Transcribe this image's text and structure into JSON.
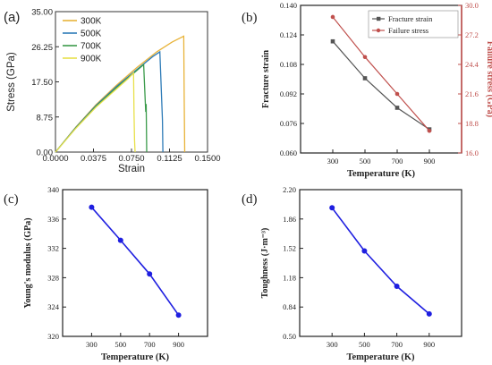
{
  "chart_data": [
    {
      "panel": "(a)",
      "type": "line",
      "xlabel": "Strain",
      "ylabel": "Stress (GPa)",
      "xlim": [
        0,
        0.15
      ],
      "ylim": [
        0,
        35
      ],
      "xticks": [
        "0.0000",
        "0.0375",
        "0.0750",
        "0.1125",
        "0.1500"
      ],
      "yticks": [
        "0.00",
        "8.75",
        "17.50",
        "26.25",
        "35.00"
      ],
      "legend_position": "top-left",
      "series": [
        {
          "name": "300K",
          "color": "#e8b339",
          "points": [
            [
              0,
              0
            ],
            [
              0.02,
              6.2
            ],
            [
              0.04,
              11.8
            ],
            [
              0.06,
              16.6
            ],
            [
              0.08,
              21.0
            ],
            [
              0.1,
              25.0
            ],
            [
              0.115,
              27.4
            ],
            [
              0.1265,
              28.9
            ],
            [
              0.127,
              14.0
            ],
            [
              0.1275,
              0
            ]
          ]
        },
        {
          "name": "500K",
          "color": "#2e7bb7",
          "points": [
            [
              0,
              0
            ],
            [
              0.02,
              6.1
            ],
            [
              0.04,
              11.6
            ],
            [
              0.06,
              16.3
            ],
            [
              0.08,
              20.5
            ],
            [
              0.096,
              23.8
            ],
            [
              0.103,
              25.0
            ],
            [
              0.1045,
              15.0
            ],
            [
              0.1055,
              8.0
            ],
            [
              0.106,
              0
            ]
          ]
        },
        {
          "name": "700K",
          "color": "#3a9a4a",
          "points": [
            [
              0,
              0
            ],
            [
              0.02,
              6.0
            ],
            [
              0.04,
              11.4
            ],
            [
              0.06,
              16.0
            ],
            [
              0.075,
              19.2
            ],
            [
              0.087,
              21.8
            ],
            [
              0.0885,
              13.0
            ],
            [
              0.089,
              10.0
            ],
            [
              0.0895,
              12.0
            ],
            [
              0.09,
              0
            ]
          ]
        },
        {
          "name": "900K",
          "color": "#e8e04a",
          "points": [
            [
              0,
              0
            ],
            [
              0.02,
              5.9
            ],
            [
              0.04,
              11.2
            ],
            [
              0.06,
              15.7
            ],
            [
              0.072,
              18.4
            ],
            [
              0.077,
              19.7
            ],
            [
              0.0775,
              10.0
            ],
            [
              0.078,
              3.0
            ],
            [
              0.0785,
              0
            ]
          ]
        }
      ]
    },
    {
      "panel": "(b)",
      "type": "line",
      "xlabel": "Temperature (K)",
      "ylabel": "Fracture strain",
      "ylabel_right": "Failure stress (GPa)",
      "x": [
        300,
        500,
        700,
        900
      ],
      "xlim": [
        100,
        1100
      ],
      "ylim": [
        0.06,
        0.14
      ],
      "ylim_right": [
        16.0,
        30.0
      ],
      "yticks": [
        "0.060",
        "0.076",
        "0.092",
        "0.108",
        "0.124",
        "0.140"
      ],
      "yticks_right": [
        "16.0",
        "18.8",
        "21.6",
        "24.4",
        "27.2",
        "30.0"
      ],
      "legend_position": "top-right",
      "series": [
        {
          "name": "Fracture strain",
          "axis": "left",
          "color": "#555555",
          "values": [
            0.1205,
            0.1005,
            0.0845,
            0.0728
          ]
        },
        {
          "name": "Failure stress",
          "axis": "right",
          "color": "#c0504d",
          "values": [
            28.9,
            25.1,
            21.6,
            18.1
          ]
        }
      ]
    },
    {
      "panel": "(c)",
      "type": "line",
      "xlabel": "Temperature (K)",
      "ylabel": "Young's modulus (GPa)",
      "x": [
        300,
        500,
        700,
        900
      ],
      "xlim": [
        100,
        1100
      ],
      "ylim": [
        320,
        340
      ],
      "yticks": [
        "320",
        "324",
        "328",
        "332",
        "336",
        "340"
      ],
      "series": [
        {
          "color": "#1f1fe0",
          "values": [
            337.6,
            333.1,
            328.5,
            322.9
          ]
        }
      ]
    },
    {
      "panel": "(d)",
      "type": "line",
      "xlabel": "Temperature (K)",
      "ylabel": "Toughness (J·m⁻³)",
      "x": [
        300,
        500,
        700,
        900
      ],
      "xlim": [
        100,
        1100
      ],
      "ylim": [
        0.5,
        2.2
      ],
      "yticks": [
        "0.50",
        "0.84",
        "1.18",
        "1.52",
        "1.86",
        "2.20"
      ],
      "series": [
        {
          "color": "#1f1fe0",
          "values": [
            1.99,
            1.49,
            1.08,
            0.76
          ]
        }
      ]
    }
  ]
}
